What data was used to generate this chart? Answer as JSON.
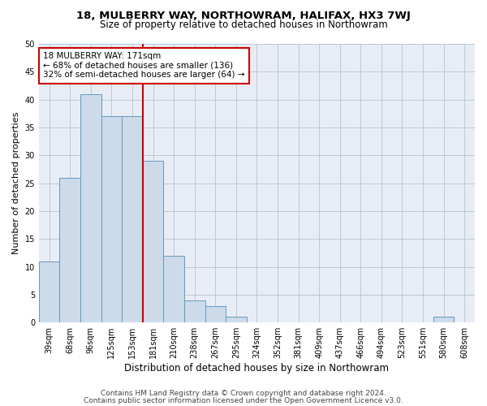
{
  "title": "18, MULBERRY WAY, NORTHOWRAM, HALIFAX, HX3 7WJ",
  "subtitle": "Size of property relative to detached houses in Northowram",
  "xlabel": "Distribution of detached houses by size in Northowram",
  "ylabel": "Number of detached properties",
  "bar_labels": [
    "39sqm",
    "68sqm",
    "96sqm",
    "125sqm",
    "153sqm",
    "181sqm",
    "210sqm",
    "238sqm",
    "267sqm",
    "295sqm",
    "324sqm",
    "352sqm",
    "381sqm",
    "409sqm",
    "437sqm",
    "466sqm",
    "494sqm",
    "523sqm",
    "551sqm",
    "580sqm",
    "608sqm"
  ],
  "bar_values": [
    11,
    26,
    41,
    37,
    37,
    29,
    12,
    4,
    3,
    1,
    0,
    0,
    0,
    0,
    0,
    0,
    0,
    0,
    0,
    1,
    0
  ],
  "bar_color": "#ccdaea",
  "bar_edge_color": "#6699bb",
  "vline_x_idx": 4.5,
  "vline_color": "#cc0000",
  "annotation_text": "18 MULBERRY WAY: 171sqm\n← 68% of detached houses are smaller (136)\n32% of semi-detached houses are larger (64) →",
  "annotation_box_color": "#ffffff",
  "annotation_box_edge": "#cc0000",
  "ylim": [
    0,
    50
  ],
  "yticks": [
    0,
    5,
    10,
    15,
    20,
    25,
    30,
    35,
    40,
    45,
    50
  ],
  "background_color": "#ffffff",
  "plot_bg_color": "#e8edf5",
  "grid_color": "#b8c8d8",
  "footer_line1": "Contains HM Land Registry data © Crown copyright and database right 2024.",
  "footer_line2": "Contains public sector information licensed under the Open Government Licence v3.0.",
  "title_fontsize": 9.5,
  "subtitle_fontsize": 8.5,
  "xlabel_fontsize": 8.5,
  "ylabel_fontsize": 8,
  "tick_fontsize": 7,
  "annotation_fontsize": 7.5,
  "footer_fontsize": 6.5
}
